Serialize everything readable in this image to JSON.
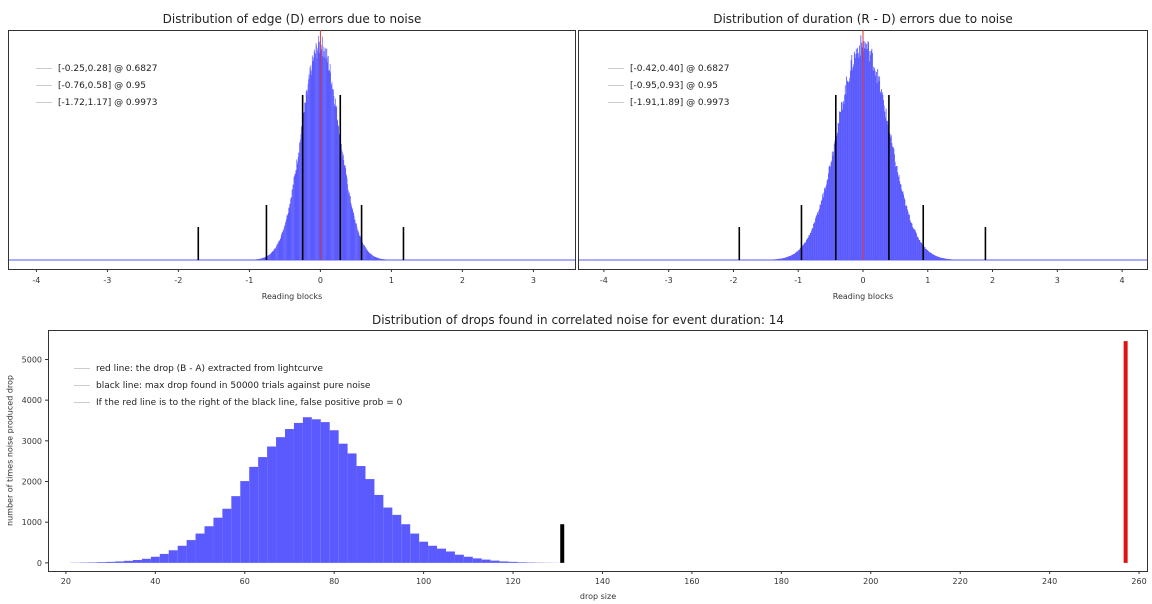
{
  "chart_data": [
    {
      "type": "histogram",
      "title": "Distribution of edge (D) errors due to noise",
      "xlabel": "Reading blocks",
      "ylabel": "",
      "xlim": [
        -4.4,
        3.6
      ],
      "x_ticks": [
        -4,
        -3,
        -2,
        -1,
        0,
        1,
        2,
        3
      ],
      "distribution": {
        "shape": "normal",
        "mean": 0.0,
        "std": 0.265,
        "color": "#5a5aff"
      },
      "center_line": {
        "x": 0.0,
        "color": "#e03030"
      },
      "confidence_lines": [
        {
          "lo": -0.25,
          "hi": 0.28,
          "height_frac": 1.0
        },
        {
          "lo": -0.76,
          "hi": 0.58,
          "height_frac": 0.33
        },
        {
          "lo": -1.72,
          "hi": 1.17,
          "height_frac": 0.2
        }
      ],
      "legend": [
        "[-0.25,0.28] @ 0.6827",
        "[-0.76,0.58] @ 0.95",
        "[-1.72,1.17] @ 0.9973"
      ],
      "legend_position": "top-left"
    },
    {
      "type": "histogram",
      "title": "Distribution of duration (R - D) errors due to noise",
      "xlabel": "Reading blocks",
      "ylabel": "",
      "xlim": [
        -4.4,
        4.4
      ],
      "x_ticks": [
        -4,
        -3,
        -2,
        -1,
        0,
        1,
        2,
        3,
        4
      ],
      "distribution": {
        "shape": "normal",
        "mean": 0.0,
        "std": 0.4,
        "color": "#5a5aff"
      },
      "center_line": {
        "x": 0.0,
        "color": "#e03030"
      },
      "confidence_lines": [
        {
          "lo": -0.42,
          "hi": 0.4,
          "height_frac": 1.0
        },
        {
          "lo": -0.95,
          "hi": 0.93,
          "height_frac": 0.33
        },
        {
          "lo": -1.91,
          "hi": 1.89,
          "height_frac": 0.2
        }
      ],
      "legend": [
        "[-0.42,0.40] @ 0.6827",
        "[-0.95,0.93] @ 0.95",
        "[-1.91,1.89] @ 0.9973"
      ],
      "legend_position": "top-left"
    },
    {
      "type": "bar",
      "title": "Distribution of drops found in correlated noise for event duration: 14",
      "xlabel": "drop size",
      "ylabel": "number of times noise produced drop",
      "xlim": [
        16,
        262
      ],
      "ylim": [
        -200,
        5700
      ],
      "x_ticks": [
        20,
        40,
        60,
        80,
        100,
        120,
        140,
        160,
        180,
        200,
        220,
        240,
        260
      ],
      "y_ticks": [
        0,
        1000,
        2000,
        3000,
        4000,
        5000
      ],
      "bin_width": 2,
      "bar_color": "#5a5aff",
      "x": [
        22,
        24,
        26,
        28,
        30,
        32,
        34,
        36,
        38,
        40,
        42,
        44,
        46,
        48,
        50,
        52,
        54,
        56,
        58,
        60,
        62,
        64,
        66,
        68,
        70,
        72,
        74,
        76,
        78,
        80,
        82,
        84,
        86,
        88,
        90,
        92,
        94,
        96,
        98,
        100,
        102,
        104,
        106,
        108,
        110,
        112,
        114,
        116,
        118,
        120,
        122,
        124,
        126,
        128,
        130
      ],
      "values": [
        5,
        8,
        12,
        18,
        25,
        35,
        50,
        70,
        100,
        150,
        220,
        310,
        420,
        560,
        720,
        900,
        1110,
        1330,
        1640,
        2010,
        2360,
        2600,
        2860,
        3090,
        3290,
        3440,
        3580,
        3530,
        3460,
        3260,
        2930,
        2690,
        2380,
        2060,
        1670,
        1360,
        1180,
        950,
        720,
        520,
        420,
        350,
        280,
        200,
        150,
        110,
        80,
        55,
        35,
        25,
        15,
        10,
        6,
        4,
        2
      ],
      "annotation_lines": [
        {
          "x": 131,
          "y": 950,
          "color": "#000000"
        },
        {
          "x": 257,
          "y": 5450,
          "color": "#dd1111"
        }
      ],
      "legend": [
        "red line: the drop (B - A) extracted from lightcurve",
        "black line: max drop found in 50000 trials against pure noise",
        "If the red line is to the right of the black line, false positive prob = 0"
      ],
      "legend_position": "top-left"
    }
  ]
}
